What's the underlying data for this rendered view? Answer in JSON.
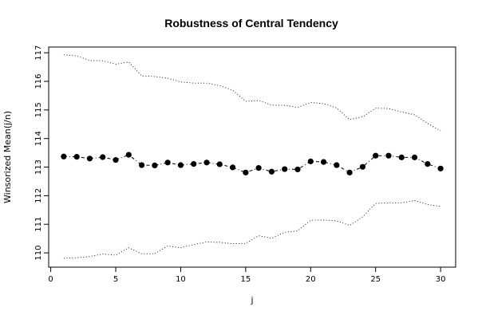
{
  "chart_data": {
    "type": "line",
    "title": "Robustness of Central Tendency",
    "xlabel": "j",
    "ylabel": "Winsorized Mean(j/n)",
    "xlim": [
      -0.16,
      31.16
    ],
    "ylim": [
      109.5,
      117.2
    ],
    "x_ticks": [
      0,
      5,
      10,
      15,
      20,
      25,
      30
    ],
    "y_ticks": [
      110,
      111,
      112,
      113,
      114,
      115,
      116,
      117
    ],
    "grid": false,
    "legend": "none",
    "x": [
      1,
      2,
      3,
      4,
      5,
      6,
      7,
      8,
      9,
      10,
      11,
      12,
      13,
      14,
      15,
      16,
      17,
      18,
      19,
      20,
      21,
      22,
      23,
      24,
      25,
      26,
      27,
      28,
      29,
      30
    ],
    "series": [
      {
        "role": "mean",
        "style": "dashdot-with-points",
        "values": [
          113.37,
          113.36,
          113.3,
          113.35,
          113.25,
          113.43,
          113.07,
          113.06,
          113.16,
          113.07,
          113.11,
          113.16,
          113.1,
          112.99,
          112.81,
          112.97,
          112.84,
          112.93,
          112.92,
          113.2,
          113.18,
          113.07,
          112.81,
          113.01,
          113.4,
          113.4,
          113.34,
          113.34,
          113.11,
          112.95
        ]
      },
      {
        "role": "upper",
        "style": "dotted",
        "values": [
          116.93,
          116.89,
          116.73,
          116.72,
          116.6,
          116.68,
          116.19,
          116.17,
          116.11,
          115.98,
          115.94,
          115.94,
          115.85,
          115.69,
          115.3,
          115.33,
          115.17,
          115.16,
          115.09,
          115.26,
          115.22,
          115.07,
          114.66,
          114.76,
          115.06,
          115.05,
          114.93,
          114.83,
          114.53,
          114.27
        ]
      },
      {
        "role": "lower",
        "style": "dotted",
        "values": [
          109.81,
          109.83,
          109.87,
          109.96,
          109.92,
          110.18,
          109.97,
          109.97,
          110.24,
          110.18,
          110.29,
          110.38,
          110.37,
          110.32,
          110.33,
          110.6,
          110.51,
          110.72,
          110.77,
          111.14,
          111.15,
          111.12,
          110.96,
          111.26,
          111.73,
          111.75,
          111.75,
          111.83,
          111.69,
          111.63
        ]
      }
    ]
  }
}
